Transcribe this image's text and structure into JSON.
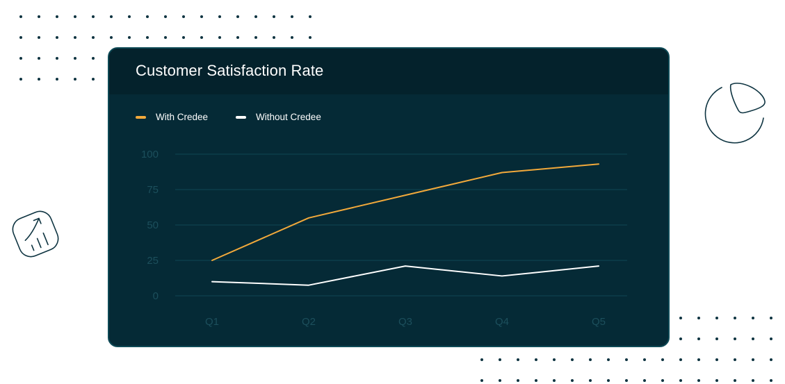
{
  "colors": {
    "background": "#ffffff",
    "card": "#052a36",
    "card_header": "#04222c",
    "grid": "#0e4754",
    "tick_text": "#1c4f5c",
    "accent_orange": "#f2a93b",
    "line_white": "#ffffff",
    "dot": "#0d3340"
  },
  "icons": [
    "pie-chart-icon",
    "growth-chart-icon",
    "dot-grid-decoration"
  ],
  "chart_data": {
    "type": "line",
    "title": "Customer Satisfaction Rate",
    "xlabel": "",
    "ylabel": "",
    "categories": [
      "Q1",
      "Q2",
      "Q3",
      "Q4",
      "Q5"
    ],
    "yticks": [
      "100",
      "75",
      "50",
      "25",
      "0"
    ],
    "ylim": [
      0,
      100
    ],
    "grid": true,
    "legend_position": "top-left",
    "series": [
      {
        "name": "With Credee",
        "color": "#f2a93b",
        "values": [
          25,
          55,
          71,
          87,
          93
        ]
      },
      {
        "name": "Without Credee",
        "color": "#ffffff",
        "values": [
          10,
          7.5,
          21,
          14,
          21
        ]
      }
    ]
  }
}
